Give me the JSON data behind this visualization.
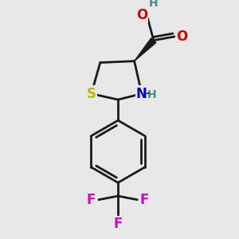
{
  "background_color": "#e8e8e8",
  "bond_color": "#1a1a1a",
  "bond_width": 2.0,
  "atom_colors": {
    "S": "#b8b800",
    "N": "#0000cc",
    "O": "#cc0000",
    "F": "#cc00cc",
    "H_gray": "#4a8a8a",
    "C": "#1a1a1a"
  },
  "font_size_atom": 12,
  "font_size_H": 10,
  "figsize": [
    3.0,
    3.0
  ],
  "dpi": 100
}
